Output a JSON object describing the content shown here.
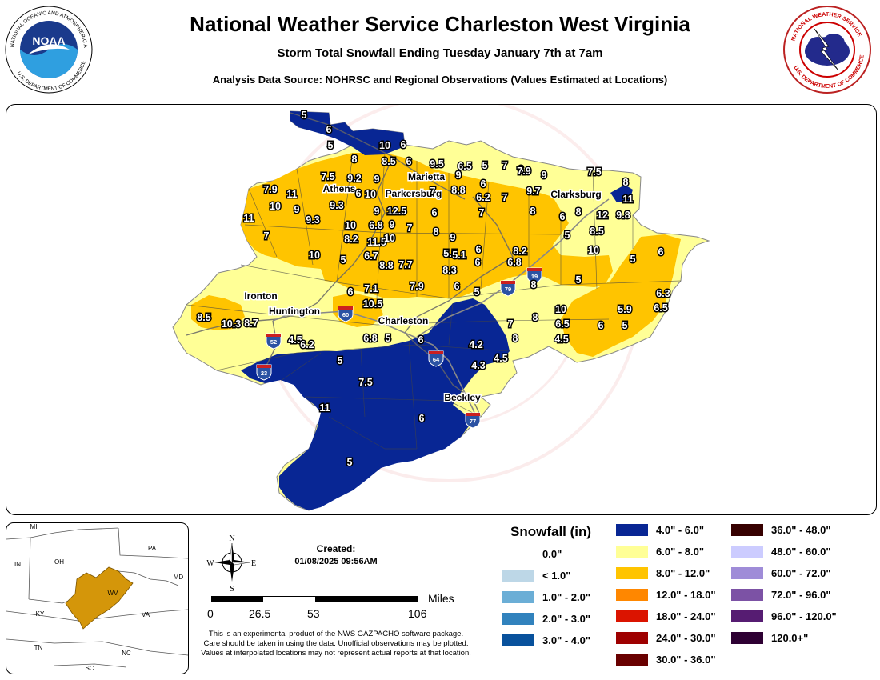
{
  "header": {
    "title": "National Weather Service Charleston West Virginia",
    "subtitle": "Storm Total Snowfall Ending Tuesday January 7th at 7am",
    "source": "Analysis Data Source: NOHRSC and Regional Observations (Values Estimated at Locations)"
  },
  "logos": {
    "left_text": "NATIONAL OCEANIC AND ATMOSPHERIC ADMINISTRATION",
    "left_bottom": "U.S. DEPARTMENT OF COMMERCE",
    "left_center": "NOAA",
    "right_text": "NATIONAL WEATHER SERVICE",
    "right_bottom": "U.S. DEPARTMENT OF COMMERCE"
  },
  "watermark": "NATIONAL WEATHER SERVICE U.S. DEPARTMENT OF COMMERCE",
  "map": {
    "cities": [
      "Marietta",
      "Athens",
      "Parkersburg",
      "Clarksburg",
      "Ironton",
      "Huntington",
      "Charleston",
      "Beckley"
    ],
    "interstates": [
      "19",
      "79",
      "64",
      "60",
      "52",
      "23",
      "77"
    ],
    "values": [
      "5",
      "6",
      "5",
      "8",
      "10",
      "6",
      "8.5",
      "6",
      "9.5",
      "6.5",
      "5",
      "7",
      "6",
      "7.5",
      "9.2",
      "9",
      "9",
      "6",
      "7.9",
      "9",
      "7.5",
      "8",
      "7.9",
      "11",
      "9.3",
      "10",
      "9.7",
      "12.5",
      "9",
      "6",
      "7",
      "8.8",
      "6.2",
      "7",
      "11",
      "10",
      "9",
      "9.3",
      "6",
      "7",
      "8",
      "6",
      "8",
      "12",
      "9.8",
      "11",
      "7",
      "10",
      "6.8",
      "9",
      "5",
      "8",
      "9",
      "8.5",
      "11.5",
      "7",
      "8.2",
      "10",
      "5",
      "6.7",
      "7.7",
      "5.5",
      "5.1",
      "6",
      "8.2",
      "10",
      "5",
      "6",
      "10",
      "8.8",
      "8.3",
      "6",
      "6.8",
      "8",
      "5",
      "6",
      "7.1",
      "7.9",
      "10.5",
      "6",
      "5",
      "6.3",
      "8.5",
      "10.3",
      "8.7",
      "4.5",
      "10",
      "6.5",
      "5.9",
      "8",
      "6.5",
      "6",
      "5",
      "6.8",
      "5",
      "6",
      "6.2",
      "7",
      "8",
      "4.5",
      "4.2",
      "4.5",
      "5",
      "4.3",
      "7.5",
      "11",
      "6",
      "5"
    ]
  },
  "inset": {
    "states": [
      "MI",
      "OH",
      "PA",
      "IN",
      "WV",
      "MD",
      "KY",
      "VA",
      "TN",
      "NC",
      "SC"
    ]
  },
  "created": {
    "label": "Created:",
    "value": "01/08/2025 09:56AM"
  },
  "compass": {
    "n": "N",
    "s": "S",
    "e": "E",
    "w": "W"
  },
  "scale": {
    "ticks": [
      "0",
      "26.5",
      "53",
      "106"
    ],
    "unit": "Miles"
  },
  "disclaimer": "This is an experimental product of the NWS GAZPACHO software package. Care should be taken in using the data. Unofficial observations may be plotted. Values at interpolated locations may not represent actual reports at that location.",
  "legend": {
    "title": "Snowfall (in)",
    "items": [
      {
        "label": "0.0\"",
        "color": "#ffffff"
      },
      {
        "label": "< 1.0\"",
        "color": "#bdd7e7"
      },
      {
        "label": "1.0\" - 2.0\"",
        "color": "#6baed6"
      },
      {
        "label": "2.0\" - 3.0\"",
        "color": "#3182bd"
      },
      {
        "label": "3.0\" - 4.0\"",
        "color": "#08519c"
      },
      {
        "label": "4.0\" - 6.0\"",
        "color": "#082694"
      },
      {
        "label": "6.0\" - 8.0\"",
        "color": "#ffff96"
      },
      {
        "label": "8.0\" - 12.0\"",
        "color": "#ffc400"
      },
      {
        "label": "12.0\" - 18.0\"",
        "color": "#ff8700"
      },
      {
        "label": "18.0\" - 24.0\"",
        "color": "#db1400"
      },
      {
        "label": "24.0\" - 30.0\"",
        "color": "#9e0000"
      },
      {
        "label": "30.0\" - 36.0\"",
        "color": "#690000"
      },
      {
        "label": "36.0\" - 48.0\"",
        "color": "#360000"
      },
      {
        "label": "48.0\" - 60.0\"",
        "color": "#ccccff"
      },
      {
        "label": "60.0\" - 72.0\"",
        "color": "#9f8cd8"
      },
      {
        "label": "72.0\" - 96.0\"",
        "color": "#7c52a5"
      },
      {
        "label": "96.0\" - 120.0\"",
        "color": "#561c72"
      },
      {
        "label": "120.0+\"",
        "color": "#2e0033"
      }
    ]
  }
}
